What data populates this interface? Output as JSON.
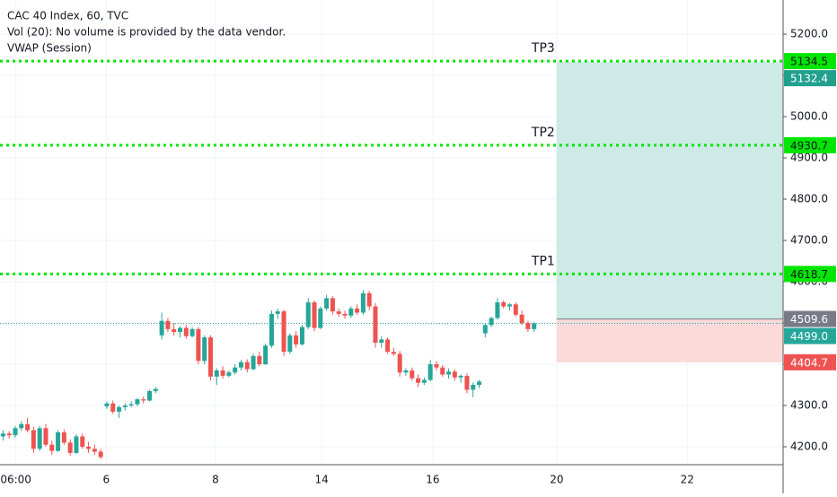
{
  "chart_data": {
    "type": "candlestick",
    "title": "CAC 40 Index, 60, TVC",
    "subtitles": [
      "Vol (20): No volume is provided by the data vendor.",
      "VWAP (Session)"
    ],
    "up_color": "#26a69a",
    "down_color": "#ef5350",
    "xlim": [
      -0.5,
      127.8
    ],
    "xticks": [
      {
        "value": 2.1,
        "label": "06:00"
      },
      {
        "value": 16.9,
        "label": "6"
      },
      {
        "value": 34.8,
        "label": "8"
      },
      {
        "value": 52.2,
        "label": "14"
      },
      {
        "value": 70.4,
        "label": "16"
      },
      {
        "value": 90.7,
        "label": "20"
      },
      {
        "value": 112.1,
        "label": "22"
      }
    ],
    "ylim": [
      4156.5,
      5282.6
    ],
    "yticks": [
      {
        "value": 4200,
        "label": "4200.0"
      },
      {
        "value": 4300,
        "label": "4300.0"
      },
      {
        "value": 4400,
        "label": "4400.0"
      },
      {
        "value": 4500,
        "label": "4500.0"
      },
      {
        "value": 4600,
        "label": "4600.0"
      },
      {
        "value": 4700,
        "label": "4700.0"
      },
      {
        "value": 4800,
        "label": "4800.0"
      },
      {
        "value": 4900,
        "label": "4900.0"
      },
      {
        "value": 5000,
        "label": "5000.0"
      },
      {
        "value": 5100,
        "label": "5100.0"
      },
      {
        "value": 5200,
        "label": "5200.0"
      }
    ],
    "grid": true,
    "ohlc": [
      [
        4225,
        4240,
        4215,
        4232
      ],
      [
        4232,
        4238,
        4220,
        4228
      ],
      [
        4228,
        4250,
        4222,
        4245
      ],
      [
        4245,
        4262,
        4238,
        4255
      ],
      [
        4255,
        4270,
        4235,
        4240
      ],
      [
        4240,
        4248,
        4185,
        4195
      ],
      [
        4195,
        4250,
        4190,
        4245
      ],
      [
        4245,
        4255,
        4200,
        4205
      ],
      [
        4205,
        4215,
        4180,
        4190
      ],
      [
        4190,
        4240,
        4188,
        4235
      ],
      [
        4235,
        4242,
        4205,
        4210
      ],
      [
        4210,
        4218,
        4178,
        4185
      ],
      [
        4185,
        4230,
        4182,
        4225
      ],
      [
        4225,
        4232,
        4195,
        4200
      ],
      [
        4200,
        4212,
        4185,
        4195
      ],
      [
        4195,
        4205,
        4180,
        4188
      ],
      [
        4188,
        4195,
        4170,
        4175
      ],
      [
        4298,
        4310,
        4292,
        4305
      ],
      [
        4305,
        4312,
        4280,
        4285
      ],
      [
        4285,
        4300,
        4270,
        4296
      ],
      [
        4296,
        4305,
        4288,
        4300
      ],
      [
        4300,
        4310,
        4295,
        4303
      ],
      [
        4303,
        4318,
        4298,
        4315
      ],
      [
        4315,
        4322,
        4305,
        4312
      ],
      [
        4312,
        4338,
        4310,
        4335
      ],
      [
        4335,
        4345,
        4330,
        4340
      ],
      [
        4470,
        4525,
        4460,
        4505
      ],
      [
        4505,
        4512,
        4478,
        4485
      ],
      [
        4485,
        4500,
        4470,
        4478
      ],
      [
        4478,
        4492,
        4465,
        4488
      ],
      [
        4488,
        4495,
        4462,
        4468
      ],
      [
        4468,
        4490,
        4465,
        4485
      ],
      [
        4485,
        4490,
        4400,
        4408
      ],
      [
        4408,
        4470,
        4400,
        4465
      ],
      [
        4465,
        4470,
        4360,
        4370
      ],
      [
        4370,
        4390,
        4350,
        4385
      ],
      [
        4385,
        4395,
        4365,
        4372
      ],
      [
        4372,
        4385,
        4368,
        4380
      ],
      [
        4380,
        4400,
        4375,
        4392
      ],
      [
        4392,
        4410,
        4385,
        4405
      ],
      [
        4405,
        4412,
        4380,
        4388
      ],
      [
        4388,
        4425,
        4385,
        4420
      ],
      [
        4420,
        4430,
        4395,
        4400
      ],
      [
        4400,
        4450,
        4398,
        4445
      ],
      [
        4445,
        4530,
        4440,
        4522
      ],
      [
        4522,
        4535,
        4510,
        4528
      ],
      [
        4528,
        4532,
        4420,
        4430
      ],
      [
        4430,
        4475,
        4425,
        4470
      ],
      [
        4470,
        4480,
        4440,
        4448
      ],
      [
        4448,
        4495,
        4445,
        4490
      ],
      [
        4490,
        4560,
        4485,
        4550
      ],
      [
        4550,
        4555,
        4480,
        4488
      ],
      [
        4488,
        4540,
        4485,
        4535
      ],
      [
        4535,
        4568,
        4530,
        4560
      ],
      [
        4560,
        4565,
        4520,
        4528
      ],
      [
        4528,
        4535,
        4515,
        4522
      ],
      [
        4522,
        4530,
        4510,
        4518
      ],
      [
        4518,
        4540,
        4512,
        4535
      ],
      [
        4535,
        4545,
        4520,
        4525
      ],
      [
        4525,
        4580,
        4520,
        4572
      ],
      [
        4572,
        4578,
        4530,
        4540
      ],
      [
        4540,
        4548,
        4440,
        4452
      ],
      [
        4452,
        4468,
        4440,
        4460
      ],
      [
        4460,
        4465,
        4425,
        4430
      ],
      [
        4430,
        4440,
        4420,
        4425
      ],
      [
        4425,
        4432,
        4370,
        4380
      ],
      [
        4380,
        4390,
        4372,
        4385
      ],
      [
        4385,
        4392,
        4360,
        4366
      ],
      [
        4366,
        4375,
        4345,
        4355
      ],
      [
        4355,
        4368,
        4350,
        4362
      ],
      [
        4362,
        4410,
        4358,
        4400
      ],
      [
        4400,
        4408,
        4385,
        4392
      ],
      [
        4392,
        4398,
        4370,
        4375
      ],
      [
        4375,
        4390,
        4365,
        4382
      ],
      [
        4382,
        4388,
        4360,
        4368
      ],
      [
        4368,
        4375,
        4355,
        4372
      ],
      [
        4372,
        4378,
        4330,
        4338
      ],
      [
        4338,
        4355,
        4320,
        4350
      ],
      [
        4350,
        4362,
        4342,
        4358
      ],
      [
        4475,
        4500,
        4465,
        4495
      ],
      [
        4495,
        4515,
        4490,
        4512
      ],
      [
        4512,
        4560,
        4508,
        4550
      ],
      [
        4550,
        4555,
        4535,
        4540
      ],
      [
        4540,
        4548,
        4530,
        4545
      ],
      [
        4545,
        4550,
        4515,
        4520
      ],
      [
        4520,
        4530,
        4495,
        4500
      ],
      [
        4500,
        4505,
        4478,
        4485
      ],
      [
        4485,
        4502,
        4478,
        4499
      ]
    ],
    "levels": [
      {
        "name": "TP3",
        "value": 5134.5
      },
      {
        "name": "TP2",
        "value": 4930.7
      },
      {
        "name": "TP1",
        "value": 4618.7
      }
    ],
    "level_color": "#00e600",
    "position": {
      "start": 90.7,
      "target": 5132.4,
      "entry": 4509.6,
      "stop": 4404.7,
      "profit_color": "#cdeae6",
      "loss_color": "#fcdada",
      "target_color": "#22a08f",
      "entry_color": "#787b86",
      "stop_color": "#ef5350"
    },
    "last_price": {
      "value": 4499,
      "label": "4499.0"
    },
    "last_color": "#26a69a"
  }
}
